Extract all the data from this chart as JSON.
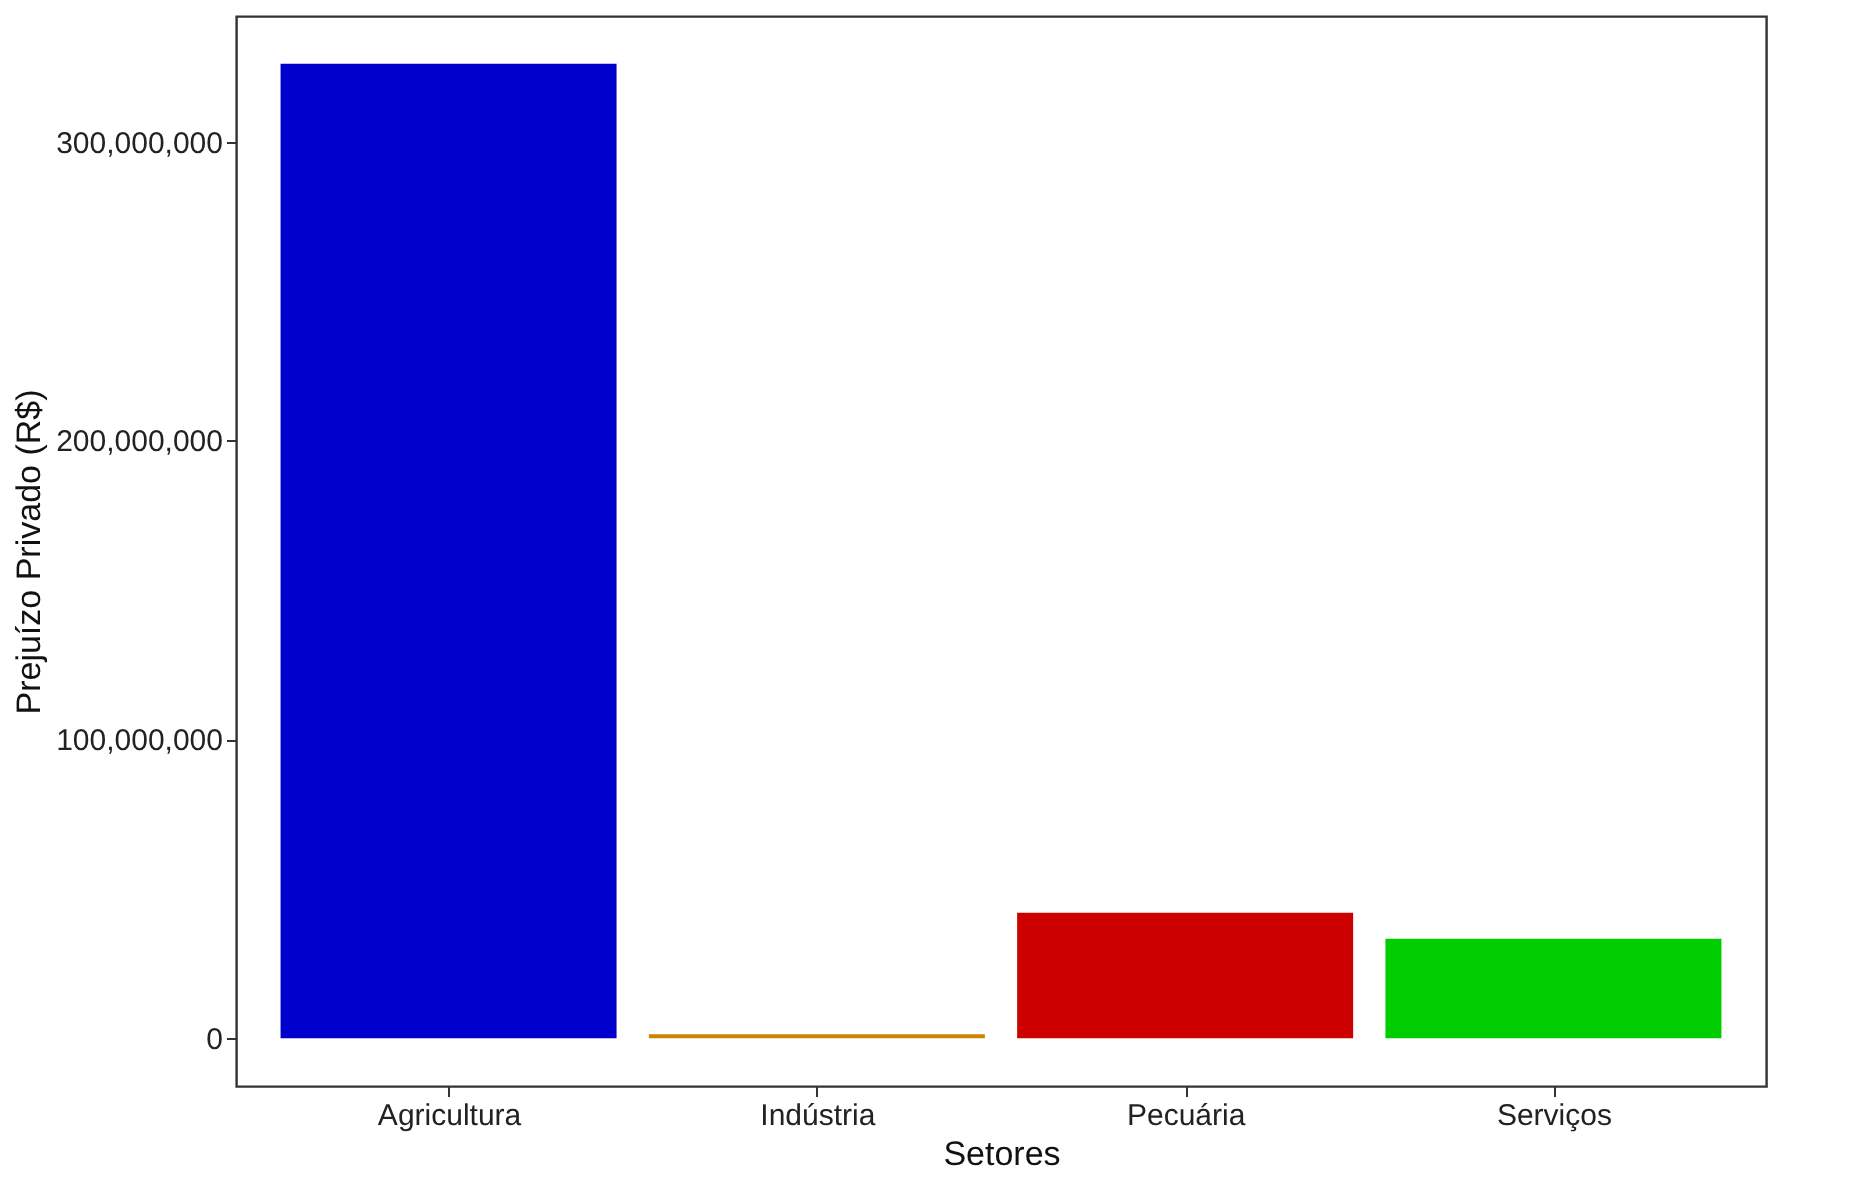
{
  "chart_data": {
    "type": "bar",
    "xlabel": "Setores",
    "ylabel": "Prejuízo Privado (R$)",
    "categories": [
      "Agricultura",
      "Indústria",
      "Pecuária",
      "Serviços"
    ],
    "values": [
      326000000,
      1300000,
      42000000,
      33300000
    ],
    "colors": [
      "#0000cd",
      "#cd8500",
      "#cd0000",
      "#00cd00"
    ],
    "ylim": [
      -16000000,
      342000000
    ],
    "yticks": [
      {
        "value": 0,
        "label": "0"
      },
      {
        "value": 100000000,
        "label": "100,000,000"
      },
      {
        "value": 200000000,
        "label": "200,000,000"
      },
      {
        "value": 300000000,
        "label": "300,000,000"
      }
    ],
    "grid": false
  }
}
